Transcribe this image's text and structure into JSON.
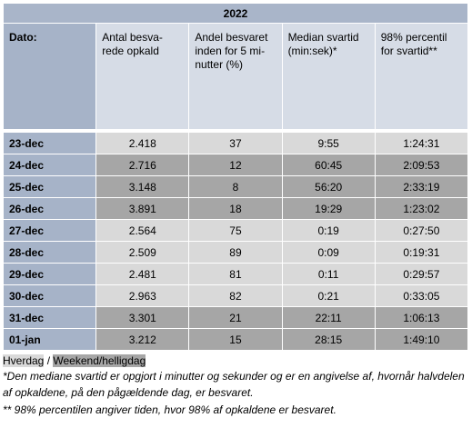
{
  "header": {
    "year": "2022"
  },
  "table": {
    "columns": [
      "Dato:",
      "Antal besva-\nrede opkald",
      "Andel besvaret\ninden for 5 mi-\nnutter (%)",
      "Median svartid\n(min:sek)*",
      "98% percentil\nfor svartid**"
    ],
    "weekend": [
      false,
      true,
      true,
      true,
      false,
      false,
      false,
      false,
      true,
      true
    ],
    "rows": [
      [
        "23-dec",
        "2.418",
        "37",
        "9:55",
        "1:24:31"
      ],
      [
        "24-dec",
        "2.716",
        "12",
        "60:45",
        "2:09:53"
      ],
      [
        "25-dec",
        "3.148",
        "8",
        "56:20",
        "2:33:19"
      ],
      [
        "26-dec",
        "3.891",
        "18",
        "19:29",
        "1:23:02"
      ],
      [
        "27-dec",
        "2.564",
        "75",
        "0:19",
        "0:27:50"
      ],
      [
        "28-dec",
        "2.509",
        "89",
        "0:09",
        "0:19:31"
      ],
      [
        "29-dec",
        "2.481",
        "81",
        "0:11",
        "0:29:57"
      ],
      [
        "30-dec",
        "2.963",
        "82",
        "0:21",
        "0:33:05"
      ],
      [
        "31-dec",
        "3.301",
        "21",
        "22:11",
        "1:06:13"
      ],
      [
        "01-jan",
        "3.212",
        "15",
        "28:15",
        "1:49:10"
      ]
    ]
  },
  "legend": {
    "weekday": "Hverdag",
    "separator": "/",
    "weekend": "Weekend/helligdag"
  },
  "footnotes": [
    "*Den mediane svartid er opgjort i minutter og sekunder og er en angivelse af, hvornår halvdelen af opkaldene, på den pågældende dag, er besvaret.",
    "** 98% percentilen angiver tiden, hvor 98% af opkaldene er besvaret."
  ]
}
